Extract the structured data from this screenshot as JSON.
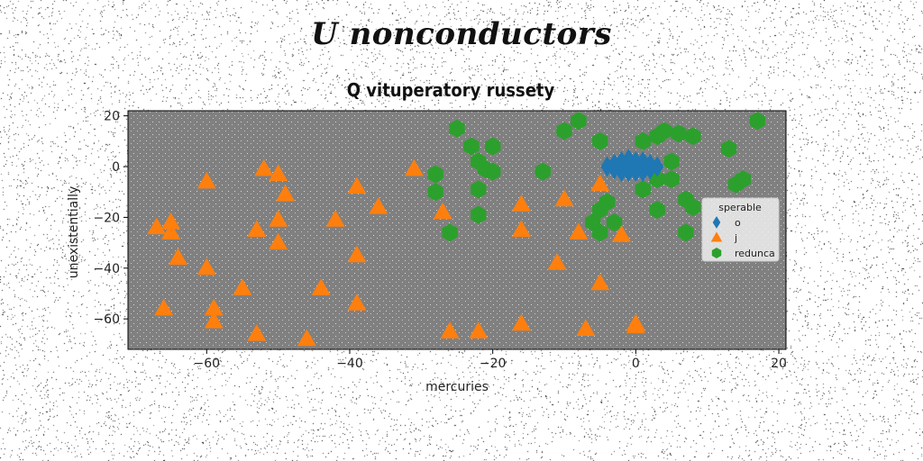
{
  "suptitle": "U nonconductors",
  "chart_data": {
    "type": "scatter",
    "title": "Q vituperatory russety",
    "xlabel": "mercuries",
    "ylabel": "unexistentially",
    "xlim": [
      -71,
      21
    ],
    "ylim": [
      -72,
      22
    ],
    "xticks": [
      -60,
      -40,
      -20,
      0,
      20
    ],
    "yticks": [
      20,
      0,
      -20,
      -40,
      -60
    ],
    "xtick_labels": [
      "−60",
      "−40",
      "−20",
      "0",
      "20"
    ],
    "ytick_labels": [
      "20",
      "0",
      "−20",
      "−40",
      "−60"
    ],
    "background": "#808080",
    "grid": false,
    "legend": {
      "title": "sperable",
      "position": "right"
    },
    "series": [
      {
        "name": "o",
        "marker": "diamond",
        "color": "#1f77b4",
        "points": [
          [
            -3,
            1
          ],
          [
            -2,
            2
          ],
          [
            -1,
            0
          ],
          [
            0,
            1
          ],
          [
            1,
            -1
          ],
          [
            -2,
            -1
          ],
          [
            0,
            2
          ],
          [
            2,
            1
          ],
          [
            -1,
            3
          ],
          [
            1,
            0
          ],
          [
            -4,
            0
          ],
          [
            0,
            -2
          ],
          [
            -2,
            -2
          ],
          [
            1,
            2
          ],
          [
            2,
            -1
          ],
          [
            -1,
            -2
          ],
          [
            3,
            0
          ],
          [
            0,
            0
          ],
          [
            -3,
            -1
          ],
          [
            1,
            -2
          ]
        ]
      },
      {
        "name": "j",
        "marker": "triangle",
        "color": "#ff7f0e",
        "points": [
          [
            -67,
            -24
          ],
          [
            -65,
            -22
          ],
          [
            -65,
            -26
          ],
          [
            -64,
            -36
          ],
          [
            -66,
            -56
          ],
          [
            -60,
            -6
          ],
          [
            -60,
            -40
          ],
          [
            -59,
            -56
          ],
          [
            -59,
            -61
          ],
          [
            -55,
            -48
          ],
          [
            -53,
            -25
          ],
          [
            -53,
            -66
          ],
          [
            -52,
            -1
          ],
          [
            -50,
            -3
          ],
          [
            -50,
            -21
          ],
          [
            -50,
            -30
          ],
          [
            -49,
            -11
          ],
          [
            -46,
            -68
          ],
          [
            -44,
            -48
          ],
          [
            -42,
            -21
          ],
          [
            -39,
            -8
          ],
          [
            -39,
            -35
          ],
          [
            -39,
            -54
          ],
          [
            -36,
            -16
          ],
          [
            -31,
            -1
          ],
          [
            -27,
            -18
          ],
          [
            -26,
            -65
          ],
          [
            -22,
            -65
          ],
          [
            -16,
            -15
          ],
          [
            -16,
            -25
          ],
          [
            -16,
            -62
          ],
          [
            -11,
            -38
          ],
          [
            -10,
            -13
          ],
          [
            -8,
            -26
          ],
          [
            -7,
            -64
          ],
          [
            -5,
            -46
          ],
          [
            -5,
            -7
          ],
          [
            -2,
            -27
          ],
          [
            0,
            -63
          ],
          [
            0,
            -62
          ]
        ]
      },
      {
        "name": "redunca",
        "marker": "hexagon",
        "color": "#2ca02c",
        "points": [
          [
            -25,
            15
          ],
          [
            -23,
            8
          ],
          [
            -22,
            2
          ],
          [
            -21,
            -1
          ],
          [
            -20,
            -2
          ],
          [
            -20,
            8
          ],
          [
            -22,
            -9
          ],
          [
            -22,
            -19
          ],
          [
            -26,
            -26
          ],
          [
            -28,
            -3
          ],
          [
            -28,
            -10
          ],
          [
            -13,
            -2
          ],
          [
            -10,
            14
          ],
          [
            -8,
            18
          ],
          [
            -5,
            10
          ],
          [
            -5,
            -17
          ],
          [
            -4,
            -14
          ],
          [
            -6,
            -22
          ],
          [
            -3,
            -22
          ],
          [
            -5,
            -26
          ],
          [
            1,
            -9
          ],
          [
            1,
            10
          ],
          [
            3,
            -5
          ],
          [
            3,
            -17
          ],
          [
            3,
            12
          ],
          [
            4,
            14
          ],
          [
            5,
            -5
          ],
          [
            5,
            2
          ],
          [
            6,
            13
          ],
          [
            7,
            -13
          ],
          [
            7,
            -26
          ],
          [
            8,
            -16
          ],
          [
            8,
            12
          ],
          [
            13,
            7
          ],
          [
            14,
            -7
          ],
          [
            15,
            -5
          ],
          [
            17,
            18
          ]
        ]
      }
    ]
  }
}
